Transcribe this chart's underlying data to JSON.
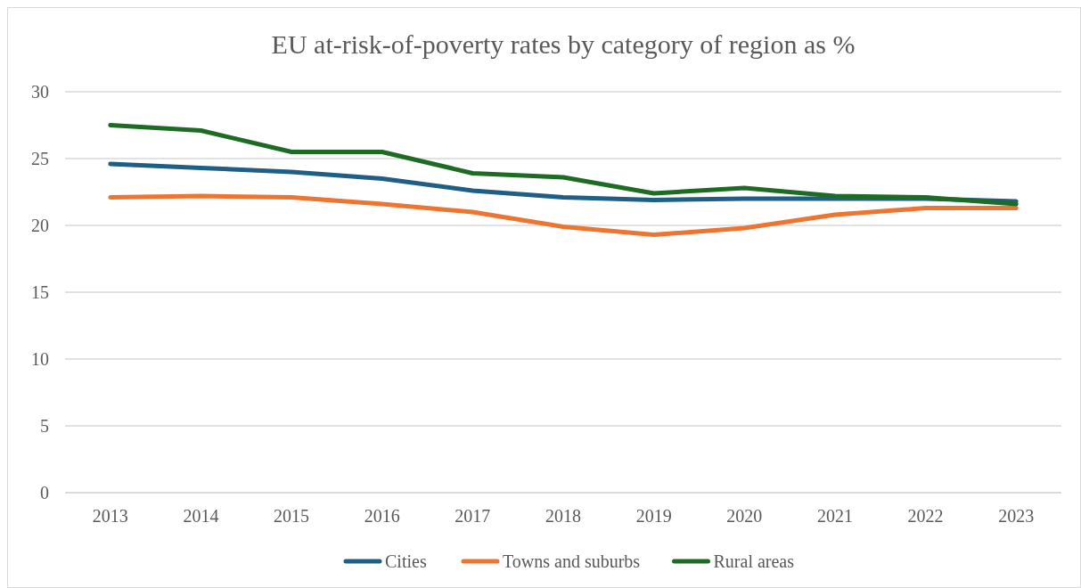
{
  "chart_data": {
    "type": "line",
    "title": "EU at-risk-of-poverty rates by category of region as %",
    "categories": [
      "2013",
      "2014",
      "2015",
      "2016",
      "2017",
      "2018",
      "2019",
      "2020",
      "2021",
      "2022",
      "2023"
    ],
    "series": [
      {
        "name": "Cities",
        "color": "#1f5f86",
        "values": [
          24.6,
          24.3,
          24.0,
          23.5,
          22.6,
          22.1,
          21.9,
          22.0,
          22.0,
          22.0,
          21.8
        ]
      },
      {
        "name": "Towns and suburbs",
        "color": "#ed7532",
        "values": [
          22.1,
          22.2,
          22.1,
          21.6,
          21.0,
          19.9,
          19.3,
          19.8,
          20.8,
          21.3,
          21.3
        ]
      },
      {
        "name": "Rural areas",
        "color": "#1e6b24",
        "values": [
          27.5,
          27.1,
          25.5,
          25.5,
          23.9,
          23.6,
          22.4,
          22.8,
          22.2,
          22.1,
          21.6
        ]
      }
    ],
    "ylim": [
      0,
      30
    ],
    "yticks": [
      0,
      5,
      10,
      15,
      20,
      25,
      30
    ],
    "grid": "y",
    "legend": "bottom",
    "line_style": "solid",
    "marker": "none"
  }
}
